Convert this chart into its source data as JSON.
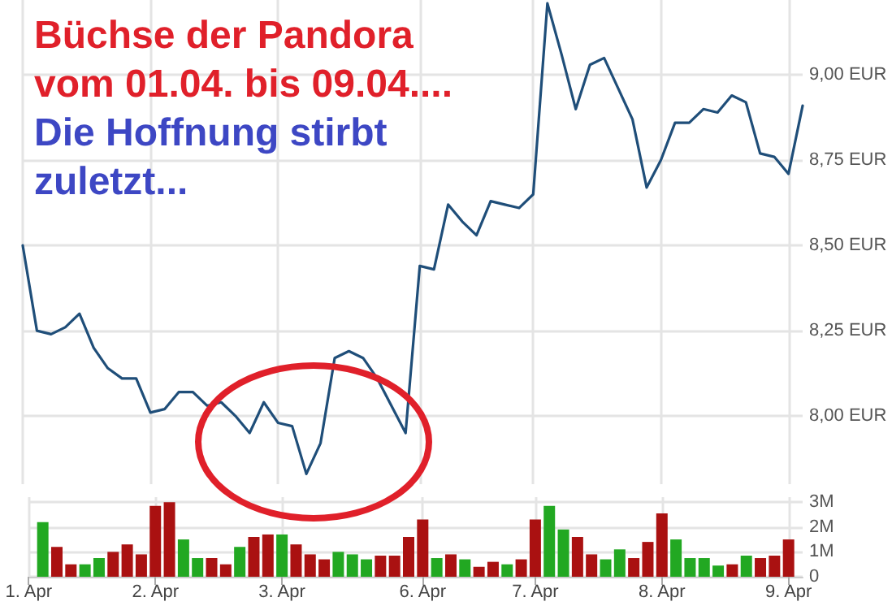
{
  "chart_data": [
    {
      "type": "line",
      "title": "Büchse der Pandora\nvom 01.04. bis 09.04....",
      "subtitle": "Die Hoffnung stirbt\nzuletzt...",
      "categories": [
        null,
        null,
        null,
        null,
        null,
        null,
        null,
        null,
        null,
        null,
        null,
        null,
        null,
        null,
        null,
        null,
        null,
        null,
        null,
        null,
        null,
        null,
        null,
        null,
        null,
        null,
        null,
        null,
        null,
        null,
        null,
        null,
        null,
        null,
        null,
        null,
        null,
        null,
        null,
        null,
        null,
        null,
        null,
        null,
        null,
        null,
        null,
        null,
        null,
        null,
        null,
        null,
        null,
        null,
        null,
        null
      ],
      "series": [
        {
          "color": "#1f4e79",
          "values": [
            8.5,
            8.25,
            8.24,
            8.26,
            8.3,
            8.2,
            8.14,
            8.11,
            8.11,
            8.01,
            8.02,
            8.07,
            8.07,
            8.03,
            8.04,
            8.0,
            7.95,
            8.04,
            7.98,
            7.97,
            7.83,
            7.92,
            8.17,
            8.19,
            8.17,
            8.11,
            8.03,
            7.95,
            8.44,
            8.43,
            8.62,
            8.57,
            8.53,
            8.63,
            8.62,
            8.61,
            8.65,
            9.21,
            9.06,
            8.9,
            9.03,
            9.05,
            8.96,
            8.87,
            8.67,
            8.75,
            8.86,
            8.86,
            8.9,
            8.89,
            8.94,
            8.92,
            8.77,
            8.76,
            8.71,
            8.91
          ]
        }
      ],
      "ylim": [
        7.8,
        9.22
      ],
      "yticks": [
        {
          "value": 8,
          "label": "8,00 EUR"
        },
        {
          "value": 8.25,
          "label": "8,25 EUR"
        },
        {
          "value": 8.5,
          "label": "8,50 EUR"
        },
        {
          "value": 8.75,
          "label": "8,75 EUR"
        },
        {
          "value": 9,
          "label": "9,00 EUR"
        }
      ],
      "grid": true,
      "line_style": "solid",
      "tick_labels": "y"
    },
    {
      "type": "bar",
      "categories": [
        "1. Apr",
        null,
        null,
        null,
        null,
        null,
        null,
        null,
        null,
        "2. Apr",
        null,
        null,
        null,
        null,
        null,
        null,
        null,
        null,
        "3. Apr",
        null,
        null,
        null,
        null,
        null,
        null,
        null,
        null,
        null,
        "6. Apr",
        null,
        null,
        null,
        null,
        null,
        null,
        null,
        "7. Apr",
        null,
        null,
        null,
        null,
        null,
        null,
        null,
        null,
        "8. Apr",
        null,
        null,
        null,
        null,
        null,
        null,
        null,
        null,
        "9. Apr",
        null
      ],
      "values": [
        null,
        2.2,
        1.2,
        0.5,
        0.5,
        0.75,
        1.0,
        1.3,
        0.9,
        2.85,
        3.0,
        1.5,
        0.75,
        0.75,
        0.5,
        1.2,
        1.6,
        1.7,
        1.7,
        1.3,
        0.9,
        0.7,
        1.0,
        0.9,
        0.7,
        0.85,
        0.85,
        1.6,
        2.3,
        0.75,
        0.9,
        0.7,
        0.4,
        0.6,
        0.5,
        0.7,
        2.3,
        2.85,
        1.9,
        1.6,
        0.9,
        0.7,
        1.1,
        0.75,
        1.4,
        2.55,
        1.5,
        0.75,
        0.75,
        0.45,
        0.5,
        0.85,
        0.75,
        0.85,
        1.5,
        null
      ],
      "colors": [
        null,
        "#22a822",
        "#aa1111",
        "#aa1111",
        "#22a822",
        "#22a822",
        "#aa1111",
        "#aa1111",
        "#aa1111",
        "#aa1111",
        "#aa1111",
        "#22a822",
        "#22a822",
        "#aa1111",
        "#aa1111",
        "#22a822",
        "#aa1111",
        "#aa1111",
        "#22a822",
        "#aa1111",
        "#aa1111",
        "#aa1111",
        "#22a822",
        "#22a822",
        "#22a822",
        "#aa1111",
        "#aa1111",
        "#aa1111",
        "#aa1111",
        "#22a822",
        "#aa1111",
        "#22a822",
        "#aa1111",
        "#aa1111",
        "#22a822",
        "#aa1111",
        "#aa1111",
        "#22a822",
        "#22a822",
        "#aa1111",
        "#aa1111",
        "#22a822",
        "#22a822",
        "#aa1111",
        "#aa1111",
        "#aa1111",
        "#22a822",
        "#22a822",
        "#22a822",
        "#22a822",
        "#aa1111",
        "#22a822",
        "#aa1111",
        "#aa1111",
        "#aa1111",
        null
      ],
      "ylim": [
        0,
        3.2
      ],
      "yticks": [
        {
          "value": 0,
          "label": "0"
        },
        {
          "value": 1,
          "label": "1M"
        },
        {
          "value": 2,
          "label": "2M"
        },
        {
          "value": 3,
          "label": "3M"
        }
      ],
      "grid": true
    }
  ]
}
